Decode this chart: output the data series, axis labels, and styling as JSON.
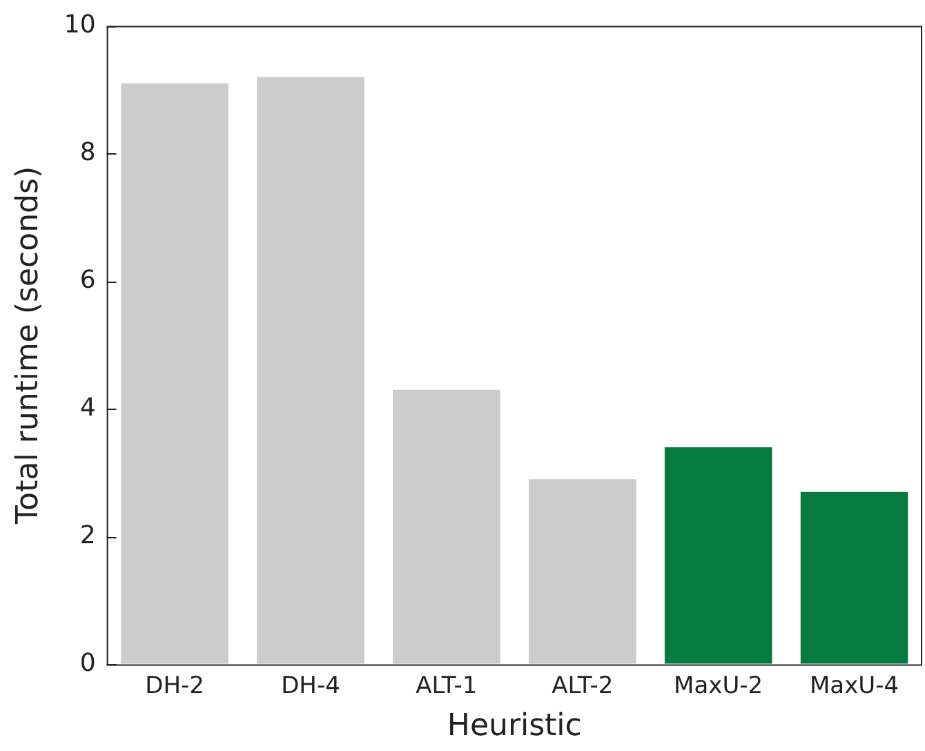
{
  "chart_data": {
    "type": "bar",
    "xlabel": "Heuristic",
    "ylabel": "Total runtime (seconds)",
    "categories": [
      "DH-2",
      "DH-4",
      "ALT-1",
      "ALT-2",
      "MaxU-2",
      "MaxU-4"
    ],
    "values": [
      9.1,
      9.2,
      4.3,
      2.9,
      3.4,
      2.7
    ],
    "colors": [
      "#cccccc",
      "#cccccc",
      "#cccccc",
      "#cccccc",
      "#077a3f",
      "#077a3f"
    ],
    "ylim": [
      0,
      10
    ],
    "yticks": [
      0,
      2,
      4,
      6,
      8,
      10
    ],
    "grid": false,
    "legend": false
  }
}
